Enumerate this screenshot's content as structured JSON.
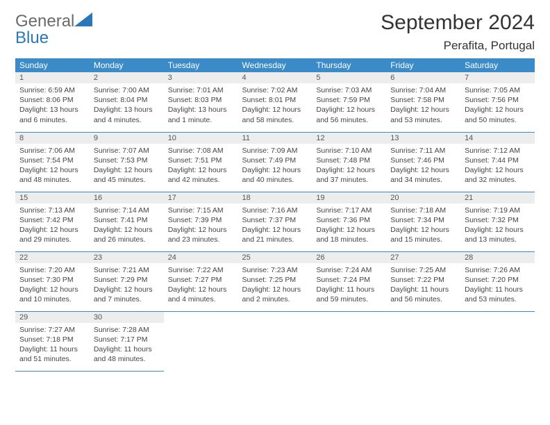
{
  "brand": {
    "general": "General",
    "blue": "Blue"
  },
  "title": "September 2024",
  "location": "Perafita, Portugal",
  "colors": {
    "header_bg": "#3b8bc9",
    "header_text": "#ffffff",
    "daynum_bg": "#ededed",
    "cell_border": "#3b8bc9",
    "brand_gray": "#6a6a6a",
    "brand_blue": "#2a78b8"
  },
  "weekdays": [
    "Sunday",
    "Monday",
    "Tuesday",
    "Wednesday",
    "Thursday",
    "Friday",
    "Saturday"
  ],
  "weeks": [
    [
      {
        "n": "1",
        "sr": "Sunrise: 6:59 AM",
        "ss": "Sunset: 8:06 PM",
        "dl": "Daylight: 13 hours and 6 minutes."
      },
      {
        "n": "2",
        "sr": "Sunrise: 7:00 AM",
        "ss": "Sunset: 8:04 PM",
        "dl": "Daylight: 13 hours and 4 minutes."
      },
      {
        "n": "3",
        "sr": "Sunrise: 7:01 AM",
        "ss": "Sunset: 8:03 PM",
        "dl": "Daylight: 13 hours and 1 minute."
      },
      {
        "n": "4",
        "sr": "Sunrise: 7:02 AM",
        "ss": "Sunset: 8:01 PM",
        "dl": "Daylight: 12 hours and 58 minutes."
      },
      {
        "n": "5",
        "sr": "Sunrise: 7:03 AM",
        "ss": "Sunset: 7:59 PM",
        "dl": "Daylight: 12 hours and 56 minutes."
      },
      {
        "n": "6",
        "sr": "Sunrise: 7:04 AM",
        "ss": "Sunset: 7:58 PM",
        "dl": "Daylight: 12 hours and 53 minutes."
      },
      {
        "n": "7",
        "sr": "Sunrise: 7:05 AM",
        "ss": "Sunset: 7:56 PM",
        "dl": "Daylight: 12 hours and 50 minutes."
      }
    ],
    [
      {
        "n": "8",
        "sr": "Sunrise: 7:06 AM",
        "ss": "Sunset: 7:54 PM",
        "dl": "Daylight: 12 hours and 48 minutes."
      },
      {
        "n": "9",
        "sr": "Sunrise: 7:07 AM",
        "ss": "Sunset: 7:53 PM",
        "dl": "Daylight: 12 hours and 45 minutes."
      },
      {
        "n": "10",
        "sr": "Sunrise: 7:08 AM",
        "ss": "Sunset: 7:51 PM",
        "dl": "Daylight: 12 hours and 42 minutes."
      },
      {
        "n": "11",
        "sr": "Sunrise: 7:09 AM",
        "ss": "Sunset: 7:49 PM",
        "dl": "Daylight: 12 hours and 40 minutes."
      },
      {
        "n": "12",
        "sr": "Sunrise: 7:10 AM",
        "ss": "Sunset: 7:48 PM",
        "dl": "Daylight: 12 hours and 37 minutes."
      },
      {
        "n": "13",
        "sr": "Sunrise: 7:11 AM",
        "ss": "Sunset: 7:46 PM",
        "dl": "Daylight: 12 hours and 34 minutes."
      },
      {
        "n": "14",
        "sr": "Sunrise: 7:12 AM",
        "ss": "Sunset: 7:44 PM",
        "dl": "Daylight: 12 hours and 32 minutes."
      }
    ],
    [
      {
        "n": "15",
        "sr": "Sunrise: 7:13 AM",
        "ss": "Sunset: 7:42 PM",
        "dl": "Daylight: 12 hours and 29 minutes."
      },
      {
        "n": "16",
        "sr": "Sunrise: 7:14 AM",
        "ss": "Sunset: 7:41 PM",
        "dl": "Daylight: 12 hours and 26 minutes."
      },
      {
        "n": "17",
        "sr": "Sunrise: 7:15 AM",
        "ss": "Sunset: 7:39 PM",
        "dl": "Daylight: 12 hours and 23 minutes."
      },
      {
        "n": "18",
        "sr": "Sunrise: 7:16 AM",
        "ss": "Sunset: 7:37 PM",
        "dl": "Daylight: 12 hours and 21 minutes."
      },
      {
        "n": "19",
        "sr": "Sunrise: 7:17 AM",
        "ss": "Sunset: 7:36 PM",
        "dl": "Daylight: 12 hours and 18 minutes."
      },
      {
        "n": "20",
        "sr": "Sunrise: 7:18 AM",
        "ss": "Sunset: 7:34 PM",
        "dl": "Daylight: 12 hours and 15 minutes."
      },
      {
        "n": "21",
        "sr": "Sunrise: 7:19 AM",
        "ss": "Sunset: 7:32 PM",
        "dl": "Daylight: 12 hours and 13 minutes."
      }
    ],
    [
      {
        "n": "22",
        "sr": "Sunrise: 7:20 AM",
        "ss": "Sunset: 7:30 PM",
        "dl": "Daylight: 12 hours and 10 minutes."
      },
      {
        "n": "23",
        "sr": "Sunrise: 7:21 AM",
        "ss": "Sunset: 7:29 PM",
        "dl": "Daylight: 12 hours and 7 minutes."
      },
      {
        "n": "24",
        "sr": "Sunrise: 7:22 AM",
        "ss": "Sunset: 7:27 PM",
        "dl": "Daylight: 12 hours and 4 minutes."
      },
      {
        "n": "25",
        "sr": "Sunrise: 7:23 AM",
        "ss": "Sunset: 7:25 PM",
        "dl": "Daylight: 12 hours and 2 minutes."
      },
      {
        "n": "26",
        "sr": "Sunrise: 7:24 AM",
        "ss": "Sunset: 7:24 PM",
        "dl": "Daylight: 11 hours and 59 minutes."
      },
      {
        "n": "27",
        "sr": "Sunrise: 7:25 AM",
        "ss": "Sunset: 7:22 PM",
        "dl": "Daylight: 11 hours and 56 minutes."
      },
      {
        "n": "28",
        "sr": "Sunrise: 7:26 AM",
        "ss": "Sunset: 7:20 PM",
        "dl": "Daylight: 11 hours and 53 minutes."
      }
    ],
    [
      {
        "n": "29",
        "sr": "Sunrise: 7:27 AM",
        "ss": "Sunset: 7:18 PM",
        "dl": "Daylight: 11 hours and 51 minutes."
      },
      {
        "n": "30",
        "sr": "Sunrise: 7:28 AM",
        "ss": "Sunset: 7:17 PM",
        "dl": "Daylight: 11 hours and 48 minutes."
      },
      null,
      null,
      null,
      null,
      null
    ]
  ]
}
